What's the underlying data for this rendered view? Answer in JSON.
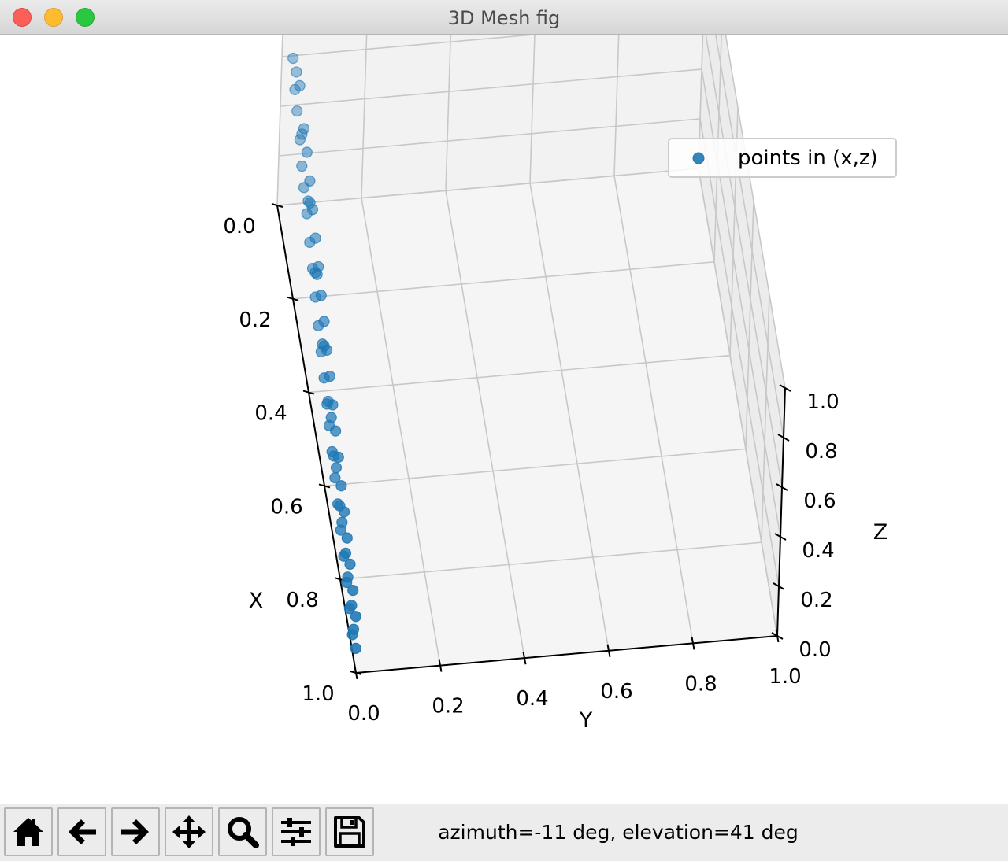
{
  "window": {
    "title": "3D Mesh fig"
  },
  "toolbar": {
    "buttons": [
      {
        "name": "home-button",
        "icon": "home-icon"
      },
      {
        "name": "back-button",
        "icon": "arrow-left-icon"
      },
      {
        "name": "forward-button",
        "icon": "arrow-right-icon"
      },
      {
        "name": "pan-button",
        "icon": "move-icon"
      },
      {
        "name": "zoom-button",
        "icon": "magnifier-icon"
      },
      {
        "name": "configure-subplots-button",
        "icon": "sliders-icon"
      },
      {
        "name": "save-button",
        "icon": "floppy-disk-icon"
      }
    ],
    "status": "azimuth=-11 deg, elevation=41 deg"
  },
  "chart_data": {
    "type": "scatter",
    "projection": "3d",
    "view": {
      "azimuth": -11,
      "elevation": 41
    },
    "title": "",
    "xlabel": "X",
    "ylabel": "Y",
    "zlabel": "Z",
    "xlim": [
      0,
      1
    ],
    "ylim": [
      0,
      1
    ],
    "zlim": [
      0,
      1
    ],
    "x_ticks": [
      "0.0",
      "0.2",
      "0.4",
      "0.6",
      "0.8",
      "1.0"
    ],
    "y_ticks": [
      "0.0",
      "0.2",
      "0.4",
      "0.6",
      "0.8",
      "1.0"
    ],
    "z_ticks": [
      "0.0",
      "0.2",
      "0.4",
      "0.6",
      "0.8",
      "1.0"
    ],
    "grid": true,
    "legend": {
      "position": "top-right",
      "entries": [
        "points in (x,z)"
      ]
    },
    "series": [
      {
        "name": "points in (x,z)",
        "color": "#1f77b4",
        "y": 0,
        "points": [
          [
            0.05,
            0.95
          ],
          [
            0.08,
            0.88
          ],
          [
            0.12,
            0.82
          ],
          [
            0.15,
            0.75
          ],
          [
            0.18,
            0.72
          ],
          [
            0.22,
            0.68
          ],
          [
            0.25,
            0.63
          ],
          [
            0.28,
            0.6
          ],
          [
            0.32,
            0.57
          ],
          [
            0.36,
            0.53
          ],
          [
            0.4,
            0.5
          ],
          [
            0.44,
            0.46
          ],
          [
            0.48,
            0.42
          ],
          [
            0.52,
            0.39
          ],
          [
            0.56,
            0.36
          ],
          [
            0.6,
            0.33
          ],
          [
            0.63,
            0.3
          ],
          [
            0.67,
            0.27
          ],
          [
            0.71,
            0.24
          ],
          [
            0.75,
            0.21
          ],
          [
            0.79,
            0.18
          ],
          [
            0.83,
            0.15
          ],
          [
            0.87,
            0.12
          ],
          [
            0.91,
            0.09
          ],
          [
            0.95,
            0.06
          ],
          [
            0.3,
            0.78
          ],
          [
            0.34,
            0.74
          ],
          [
            0.38,
            0.7
          ],
          [
            0.42,
            0.66
          ],
          [
            0.46,
            0.62
          ],
          [
            0.5,
            0.58
          ],
          [
            0.54,
            0.55
          ],
          [
            0.58,
            0.51
          ],
          [
            0.62,
            0.48
          ],
          [
            0.66,
            0.44
          ],
          [
            0.7,
            0.41
          ],
          [
            0.74,
            0.38
          ],
          [
            0.78,
            0.34
          ],
          [
            0.82,
            0.31
          ],
          [
            0.86,
            0.28
          ],
          [
            0.9,
            0.25
          ],
          [
            0.94,
            0.22
          ],
          [
            0.98,
            0.19
          ],
          [
            0.2,
            0.86
          ],
          [
            0.26,
            0.8
          ],
          [
            0.35,
            0.67
          ],
          [
            0.45,
            0.57
          ],
          [
            0.55,
            0.47
          ],
          [
            0.65,
            0.37
          ],
          [
            0.72,
            0.3
          ],
          [
            0.8,
            0.23
          ],
          [
            0.88,
            0.16
          ],
          [
            0.96,
            0.1
          ],
          [
            0.1,
            0.92
          ],
          [
            0.16,
            0.84
          ],
          [
            0.24,
            0.74
          ],
          [
            0.33,
            0.64
          ],
          [
            0.43,
            0.54
          ],
          [
            0.53,
            0.44
          ],
          [
            0.61,
            0.36
          ],
          [
            0.69,
            0.29
          ],
          [
            0.77,
            0.24
          ],
          [
            0.85,
            0.2
          ],
          [
            0.93,
            0.14
          ],
          [
            0.99,
            0.08
          ]
        ]
      }
    ]
  }
}
